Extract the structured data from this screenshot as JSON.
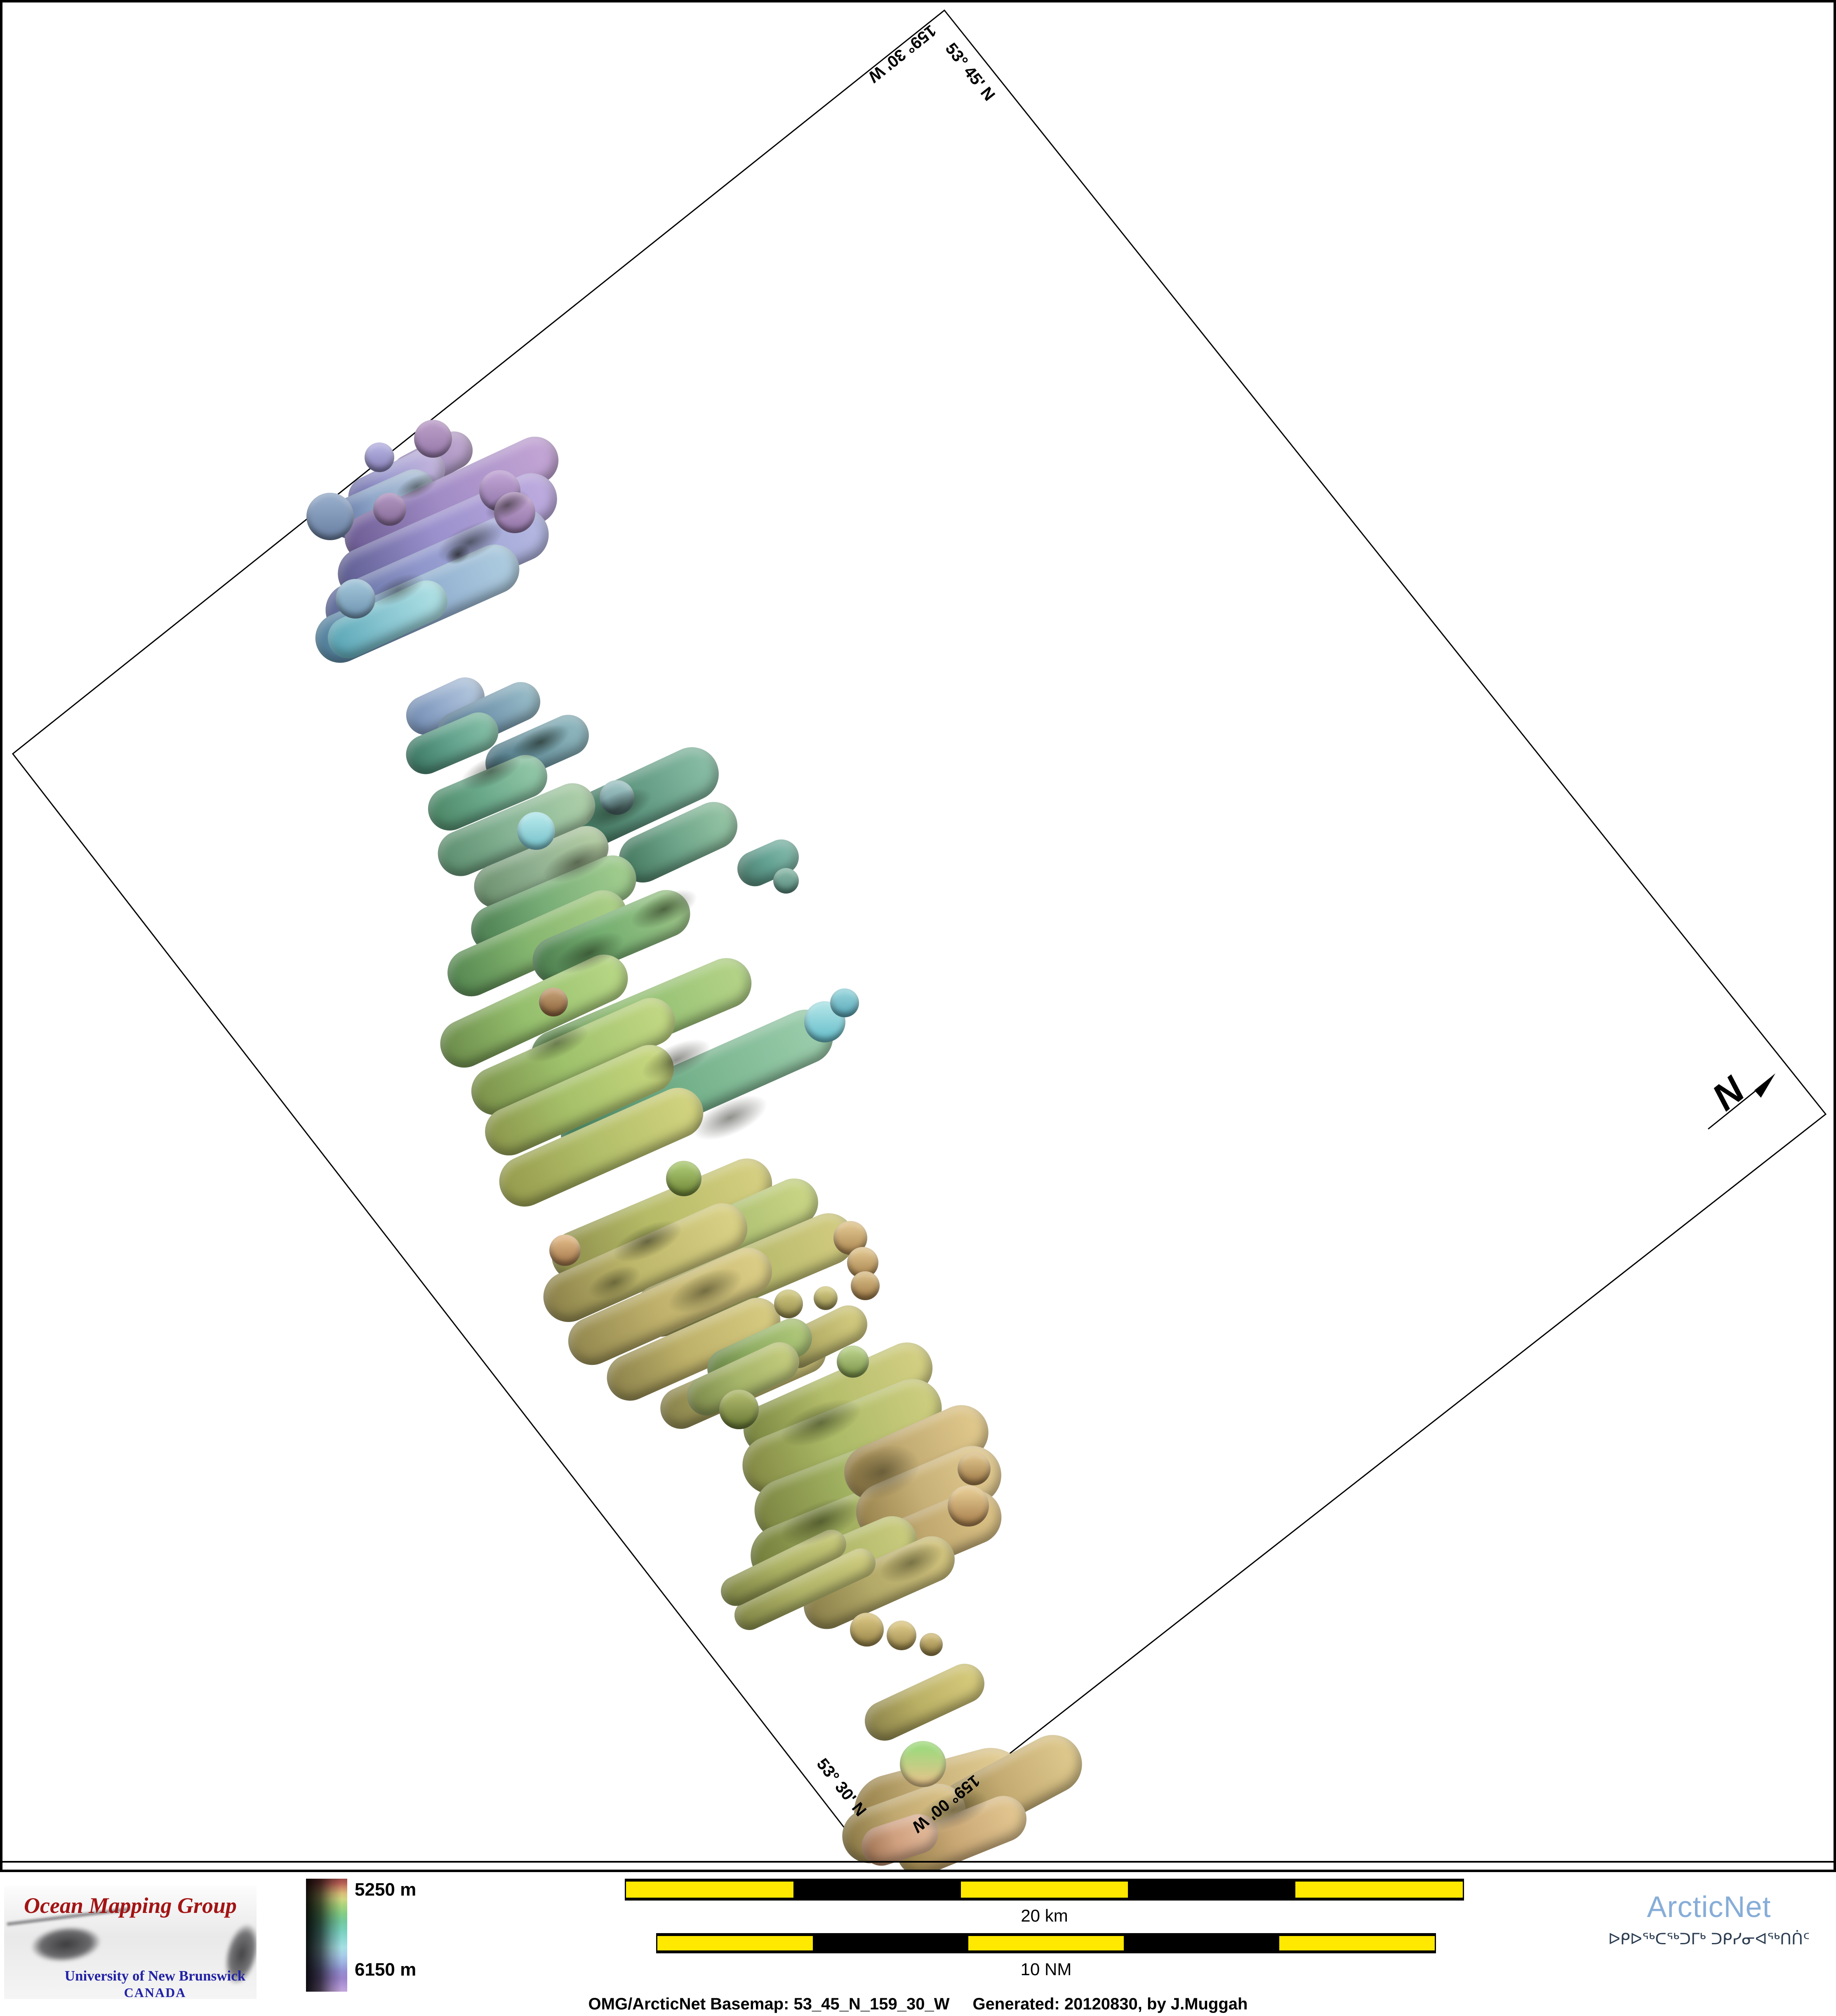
{
  "map": {
    "corner_labels": {
      "top_right": "53° 45' N",
      "top_left": "159° 30' W",
      "bottom_left": "53° 30' N",
      "bottom_right": "159° 00' W"
    },
    "north_label": "N"
  },
  "legend": {
    "top_label": "5250 m",
    "bottom_label": "6150 m",
    "gradient": [
      [
        0,
        "#9c4a46"
      ],
      [
        4,
        "#b85f55"
      ],
      [
        8,
        "#cc8a66"
      ],
      [
        13,
        "#d8bd78"
      ],
      [
        18,
        "#cfd680"
      ],
      [
        24,
        "#a8d47c"
      ],
      [
        31,
        "#84cd85"
      ],
      [
        38,
        "#72c99e"
      ],
      [
        46,
        "#78d0bc"
      ],
      [
        54,
        "#8ed8d4"
      ],
      [
        61,
        "#a6dfe4"
      ],
      [
        68,
        "#a8cce8"
      ],
      [
        75,
        "#9cb0e0"
      ],
      [
        82,
        "#948ed2"
      ],
      [
        88,
        "#9a84cc"
      ],
      [
        94,
        "#ae94d6"
      ],
      [
        100,
        "#c2a4da"
      ]
    ]
  },
  "scalebars": {
    "km_label": "20 km",
    "nm_label": "10 NM",
    "segment_yellow": "#ffe900",
    "segment_black": "#000000"
  },
  "footer": {
    "caption_basemap": "OMG/ArcticNet Basemap: 53_45_N_159_30_W",
    "caption_generated": "Generated: 20120830, by J.Muggah"
  },
  "logos": {
    "omg": {
      "title": "Ocean Mapping Group",
      "subtitle": "University of New Brunswick",
      "country": "CANADA",
      "title_color": "#a31414",
      "subtitle_color": "#2222a6"
    },
    "arcticnet": {
      "name": "ArcticNet",
      "inuktitut": "ᐅᑭᐅᖅᑕᖅᑐᒥᒃ ᑐᑭᓯᓂᐊᖅᑎᑏᑦ",
      "name_color": "#87add8"
    }
  },
  "seafloor": {
    "swaths": [
      [
        1048,
        1120,
        210,
        92,
        -28,
        "#7a659c",
        "#a591c0",
        "#c0a8d0"
      ],
      [
        962,
        1172,
        250,
        100,
        -26,
        "#6a6aa4",
        "#9e9cd0",
        "#c4b6de"
      ],
      [
        926,
        1222,
        270,
        98,
        -24,
        "#5c6c9c",
        "#8ea6c8",
        "#b2c4da"
      ],
      [
        1095,
        1210,
        560,
        115,
        -25,
        "#6a5a92",
        "#a18cc6",
        "#c2a4d4"
      ],
      [
        1085,
        1300,
        570,
        125,
        -24,
        "#5c5c90",
        "#9a90cc",
        "#bcaade"
      ],
      [
        1060,
        1388,
        580,
        130,
        -24,
        "#5a6694",
        "#9097cc",
        "#b2b6e0"
      ],
      [
        1012,
        1464,
        530,
        120,
        -24,
        "#4f7f9a",
        "#8aa8cc",
        "#accade"
      ],
      [
        940,
        1502,
        310,
        100,
        -25,
        "#58a4b4",
        "#86c4d0",
        "#aee0e4"
      ],
      [
        1080,
        1712,
        200,
        95,
        -25,
        "#6f8ab0",
        "#93aacb",
        "#b4c8de"
      ],
      [
        1185,
        1737,
        265,
        95,
        -25,
        "#4a6a82",
        "#7295ad",
        "#98bcc8"
      ],
      [
        1096,
        1802,
        235,
        95,
        -23,
        "#3a7562",
        "#5f9f8a",
        "#86c0a8"
      ],
      [
        1302,
        1817,
        265,
        100,
        -24,
        "#4a7080",
        "#6a95a0",
        "#90b8c0"
      ],
      [
        1560,
        1932,
        390,
        130,
        -25,
        "#3a6a55",
        "#609882",
        "#88bca4"
      ],
      [
        1182,
        1922,
        305,
        105,
        -23,
        "#4a8565",
        "#6aa88a",
        "#92c8a8"
      ],
      [
        1252,
        2012,
        405,
        110,
        -23,
        "#5a8c6c",
        "#85b394",
        "#accea8"
      ],
      [
        1644,
        2042,
        305,
        115,
        -25,
        "#42745c",
        "#6ba287",
        "#94c4a4"
      ],
      [
        1312,
        2102,
        345,
        105,
        -23,
        "#6a8e6c",
        "#8fb090",
        "#b4cca4"
      ],
      [
        1862,
        2092,
        155,
        85,
        -24,
        "#4a7a6a",
        "#619f90",
        "#84bcac"
      ],
      [
        1342,
        2192,
        425,
        115,
        -23,
        "#4a7c50",
        "#78ad77",
        "#a0cc8e"
      ],
      [
        1302,
        2287,
        465,
        115,
        -24,
        "#538550",
        "#84b56f",
        "#aace86"
      ],
      [
        1482,
        2272,
        405,
        115,
        -23,
        "#4a7a4c",
        "#74ae70",
        "#9cc688"
      ],
      [
        1295,
        2452,
        490,
        116,
        -25,
        "#6a8a4a",
        "#95bf6d",
        "#b6d684"
      ],
      [
        1555,
        2472,
        570,
        122,
        -23,
        "#5a8550",
        "#8fbd70",
        "#b2d286"
      ],
      [
        1690,
        2632,
        710,
        132,
        -24,
        "#427a58",
        "#73b08a",
        "#9accaa"
      ],
      [
        1390,
        2562,
        530,
        116,
        -24,
        "#7a9049",
        "#9ec16c",
        "#c0d682"
      ],
      [
        1405,
        2668,
        490,
        116,
        -24,
        "#8a954b",
        "#a6c16a",
        "#c6d67e"
      ],
      [
        1458,
        2782,
        530,
        122,
        -24,
        "#959a4c",
        "#b0bd68",
        "#d0d27e"
      ],
      [
        1605,
        2958,
        570,
        122,
        -23,
        "#8a8a4a",
        "#b5bb67",
        "#d4ce80"
      ],
      [
        1755,
        2992,
        490,
        116,
        -24,
        "#85954f",
        "#a8bc6f",
        "#c8d484"
      ],
      [
        1565,
        3062,
        530,
        122,
        -24,
        "#8a7f49",
        "#bdb76b",
        "#d8d084"
      ],
      [
        1805,
        3092,
        570,
        126,
        -23,
        "#8a854b",
        "#b2b668",
        "#d0ca7e"
      ],
      [
        1625,
        3168,
        530,
        116,
        -24,
        "#90854d",
        "#c0b26c",
        "#dacc84"
      ],
      [
        1682,
        3272,
        450,
        112,
        -24,
        "#8a804a",
        "#bdb069",
        "#d6ca80"
      ],
      [
        1802,
        3348,
        430,
        100,
        -24,
        "#857f4a",
        "#b5ad66",
        "#d0c67c"
      ],
      [
        1995,
        3242,
        230,
        92,
        -26,
        "#8a854e",
        "#b8b26a",
        "#d4cc80"
      ],
      [
        1842,
        3282,
        270,
        96,
        -25,
        "#647f42",
        "#8fae62",
        "#b0c87a"
      ],
      [
        1802,
        3344,
        290,
        96,
        -25,
        "#7a874a",
        "#a4b468",
        "#c4cc7e"
      ],
      [
        2032,
        3392,
        490,
        124,
        -24,
        "#77843f",
        "#b3bd6a",
        "#d2ce82"
      ],
      [
        2042,
        3484,
        510,
        142,
        -22,
        "#828743",
        "#aaba66",
        "#cccc7e"
      ],
      [
        2082,
        3594,
        530,
        152,
        -21,
        "#7a8340",
        "#a2b362",
        "#c4c87a"
      ],
      [
        2062,
        3704,
        510,
        146,
        -22,
        "#727c3a",
        "#9fae5e",
        "#c0c276"
      ],
      [
        2222,
        3522,
        370,
        132,
        -24,
        "#927c48",
        "#c4ad74",
        "#e0c88c"
      ],
      [
        2252,
        3622,
        370,
        142,
        -23,
        "#96804a",
        "#c7b077",
        "#e2ca90"
      ],
      [
        2262,
        3722,
        350,
        132,
        -23,
        "#8c7846",
        "#bfa76e",
        "#dcc286"
      ],
      [
        2012,
        3802,
        450,
        122,
        -23,
        "#7c8342",
        "#a8b264",
        "#c8ca7c"
      ],
      [
        2132,
        3838,
        390,
        112,
        -24,
        "#877c48",
        "#b3a968",
        "#d2c47e"
      ],
      [
        1952,
        3854,
        370,
        72,
        -25,
        "#828746",
        "#b0b468",
        "#ccca7c"
      ],
      [
        1900,
        3802,
        330,
        72,
        -26,
        "#7c8344",
        "#aab062",
        "#c6c878"
      ],
      [
        2242,
        4128,
        310,
        96,
        -25,
        "#877f48",
        "#bab065",
        "#d6ca7c"
      ],
      [
        2282,
        4362,
        430,
        182,
        -15,
        "#927c46",
        "#c9b27a",
        "#e4ce94"
      ],
      [
        2452,
        4332,
        370,
        142,
        -28,
        "#8c7a46",
        "#c4ab72",
        "#dec88c"
      ],
      [
        2192,
        4422,
        310,
        132,
        -20,
        "#857442",
        "#c0a870",
        "#dcc48a"
      ],
      [
        2332,
        4452,
        330,
        112,
        -22,
        "#927e48",
        "#caa876",
        "#e2c690"
      ],
      [
        2182,
        4462,
        190,
        96,
        -18,
        "#9a7050",
        "#d0a080",
        "#e4bc9c"
      ]
    ],
    "dots": [
      [
        1050,
        1064,
        92,
        "#b79ac4",
        "#997cac"
      ],
      [
        920,
        1109,
        72,
        "#b2aede",
        "#8c86bc"
      ],
      [
        1212,
        1190,
        100,
        "#bb9fd0",
        "#9479ac"
      ],
      [
        1248,
        1243,
        100,
        "#bc9ecc",
        "#9679aa"
      ],
      [
        945,
        1235,
        80,
        "#ac90bc",
        "#8a6f9c"
      ],
      [
        800,
        1252,
        115,
        "#92a8c6",
        "#6e84a6"
      ],
      [
        862,
        1452,
        96,
        "#9cc0d4",
        "#7498b4"
      ],
      [
        1300,
        2015,
        92,
        "#aee4e8",
        "#7cc4cc"
      ],
      [
        1496,
        1934,
        84,
        "#9cc0c0",
        "#6f98a0"
      ],
      [
        1906,
        2136,
        62,
        "#84b4a4",
        "#5c8e80"
      ],
      [
        2000,
        2478,
        100,
        "#a8e0e4",
        "#6cc0cc"
      ],
      [
        2048,
        2432,
        70,
        "#90d0d8",
        "#60acbc"
      ],
      [
        1658,
        2858,
        86,
        "#a8c470",
        "#748c3c"
      ],
      [
        1342,
        2430,
        70,
        "#c09a70",
        "#8f6840"
      ],
      [
        2062,
        3002,
        82,
        "#dcc08a",
        "#b08c56"
      ],
      [
        2092,
        3062,
        76,
        "#dcc08a",
        "#ac8852"
      ],
      [
        2098,
        3118,
        70,
        "#d4b882",
        "#a4804c"
      ],
      [
        1370,
        3032,
        76,
        "#dcb482",
        "#a87c50"
      ],
      [
        1912,
        3162,
        70,
        "#ccc47c",
        "#988e50"
      ],
      [
        2002,
        3148,
        58,
        "#d0c880",
        "#9c9254"
      ],
      [
        1792,
        3418,
        96,
        "#aab468",
        "#6c7c38"
      ],
      [
        2068,
        3302,
        78,
        "#b4cc84",
        "#80984e"
      ],
      [
        2348,
        3652,
        100,
        "#e0c48c",
        "#ac8452"
      ],
      [
        2362,
        3562,
        80,
        "#d8bc84",
        "#a4804e"
      ],
      [
        2102,
        3952,
        82,
        "#d4c07c",
        "#9e8a4e"
      ],
      [
        2186,
        3966,
        72,
        "#d8c482",
        "#a28e52"
      ],
      [
        2258,
        3988,
        56,
        "#ccb876",
        "#968248"
      ],
      [
        2238,
        4278,
        112,
        "#a2d87e",
        "#e2c48a"
      ]
    ],
    "shadows": [
      [
        1140,
        1315,
        240,
        110,
        -25,
        0.5
      ],
      [
        1010,
        1180,
        150,
        70,
        -25,
        0.45
      ],
      [
        1230,
        1225,
        160,
        80,
        -25,
        0.5
      ],
      [
        965,
        1430,
        190,
        85,
        -25,
        0.4
      ],
      [
        1110,
        1345,
        90,
        60,
        -25,
        0.6
      ],
      [
        1310,
        1800,
        210,
        90,
        -24,
        0.55
      ],
      [
        1190,
        1870,
        220,
        95,
        -24,
        0.45
      ],
      [
        1500,
        1960,
        240,
        100,
        -24,
        0.5
      ],
      [
        1400,
        2090,
        250,
        105,
        -24,
        0.45
      ],
      [
        1610,
        2205,
        240,
        100,
        -24,
        0.5
      ],
      [
        1430,
        2310,
        250,
        105,
        -24,
        0.45
      ],
      [
        1350,
        2530,
        230,
        95,
        -24,
        0.4
      ],
      [
        1640,
        2570,
        250,
        105,
        -24,
        0.45
      ],
      [
        1770,
        2710,
        270,
        115,
        -24,
        0.45
      ],
      [
        1570,
        3010,
        250,
        105,
        -24,
        0.5
      ],
      [
        1710,
        3130,
        270,
        115,
        -24,
        0.45
      ],
      [
        1490,
        3110,
        190,
        90,
        -24,
        0.4
      ],
      [
        1990,
        3450,
        290,
        125,
        -22,
        0.45
      ],
      [
        2140,
        3570,
        260,
        170,
        -20,
        0.4
      ],
      [
        1990,
        3690,
        290,
        130,
        -22,
        0.45
      ],
      [
        2210,
        3790,
        230,
        110,
        -23,
        0.4
      ],
      [
        2310,
        4390,
        250,
        115,
        -20,
        0.45
      ]
    ]
  }
}
